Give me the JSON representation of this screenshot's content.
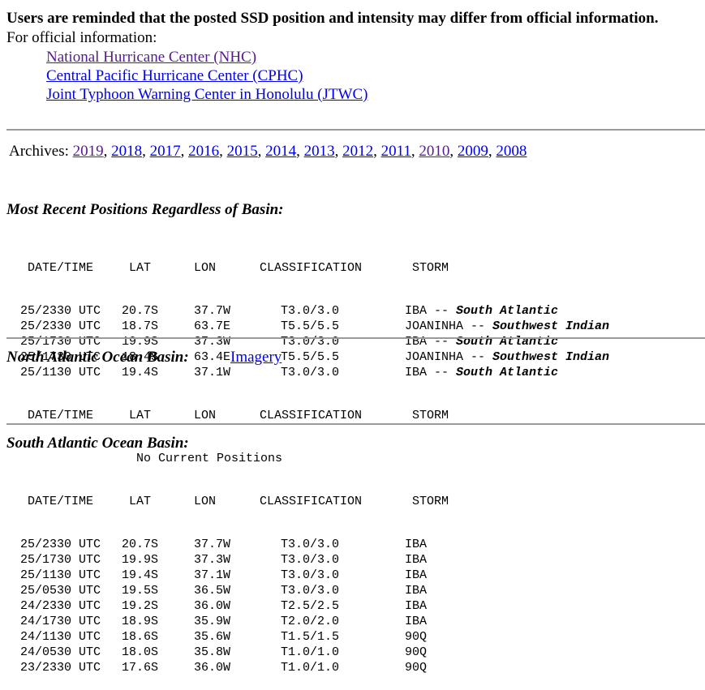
{
  "notice": "Users are reminded that the posted SSD position and intensity may differ from official information.",
  "official": {
    "label": "For official information:",
    "links": [
      {
        "text": "National Hurricane Center (NHC)"
      },
      {
        "text": "Central Pacific Hurricane Center (CPHC)"
      },
      {
        "text": "Joint Typhoon Warning Center in Honolulu (JTWC)"
      }
    ]
  },
  "archives": {
    "label": "Archives:",
    "years": [
      "2019",
      "2018",
      "2017",
      "2016",
      "2015",
      "2014",
      "2013",
      "2012",
      "2011",
      "2010",
      "2009",
      "2008"
    ]
  },
  "columns": {
    "datetime": "DATE/TIME",
    "lat": "LAT",
    "lon": "LON",
    "classification": "CLASSIFICATION",
    "storm": "STORM"
  },
  "recent": {
    "title": "Most Recent Positions Regardless of Basin:",
    "rows": [
      {
        "dt": "25/2330 UTC",
        "lat": "20.7S",
        "lon": "37.7W",
        "cls": "T3.0/3.0",
        "storm": "IBA",
        "sep": " -- ",
        "basin": "South Atlantic"
      },
      {
        "dt": "25/2330 UTC",
        "lat": "18.7S",
        "lon": "63.7E",
        "cls": "T5.5/5.5",
        "storm": "JOANINHA",
        "sep": " -- ",
        "basin": "Southwest Indian"
      },
      {
        "dt": "25/1730 UTC",
        "lat": "19.9S",
        "lon": "37.3W",
        "cls": "T3.0/3.0",
        "storm": "IBA",
        "sep": " -- ",
        "basin": "South Atlantic"
      },
      {
        "dt": "25/1730 UTC",
        "lat": "18.4S",
        "lon": "63.4E",
        "cls": "T5.5/5.5",
        "storm": "JOANINHA",
        "sep": " -- ",
        "basin": "Southwest Indian"
      },
      {
        "dt": "25/1130 UTC",
        "lat": "19.4S",
        "lon": "37.1W",
        "cls": "T3.0/3.0",
        "storm": "IBA",
        "sep": " -- ",
        "basin": "South Atlantic"
      }
    ]
  },
  "north_atlantic": {
    "title": "North Atlantic Ocean Basin:",
    "imagery_link": "Imagery",
    "no_positions": "No Current Positions"
  },
  "south_atlantic": {
    "title": "South Atlantic Ocean Basin:",
    "rows": [
      {
        "dt": "25/2330 UTC",
        "lat": "20.7S",
        "lon": "37.7W",
        "cls": "T3.0/3.0",
        "storm": "IBA"
      },
      {
        "dt": "25/1730 UTC",
        "lat": "19.9S",
        "lon": "37.3W",
        "cls": "T3.0/3.0",
        "storm": "IBA"
      },
      {
        "dt": "25/1130 UTC",
        "lat": "19.4S",
        "lon": "37.1W",
        "cls": "T3.0/3.0",
        "storm": "IBA"
      },
      {
        "dt": "25/0530 UTC",
        "lat": "19.5S",
        "lon": "36.5W",
        "cls": "T3.0/3.0",
        "storm": "IBA"
      },
      {
        "dt": "24/2330 UTC",
        "lat": "19.2S",
        "lon": "36.0W",
        "cls": "T2.5/2.5",
        "storm": "IBA"
      },
      {
        "dt": "24/1730 UTC",
        "lat": "18.9S",
        "lon": "35.9W",
        "cls": "T2.0/2.0",
        "storm": "IBA"
      },
      {
        "dt": "24/1130 UTC",
        "lat": "18.6S",
        "lon": "35.6W",
        "cls": "T1.5/1.5",
        "storm": "90Q"
      },
      {
        "dt": "24/0530 UTC",
        "lat": "18.0S",
        "lon": "35.8W",
        "cls": "T1.0/1.0",
        "storm": "90Q"
      },
      {
        "dt": "23/2330 UTC",
        "lat": "17.6S",
        "lon": "36.0W",
        "cls": "T1.0/1.0",
        "storm": "90Q"
      }
    ]
  }
}
